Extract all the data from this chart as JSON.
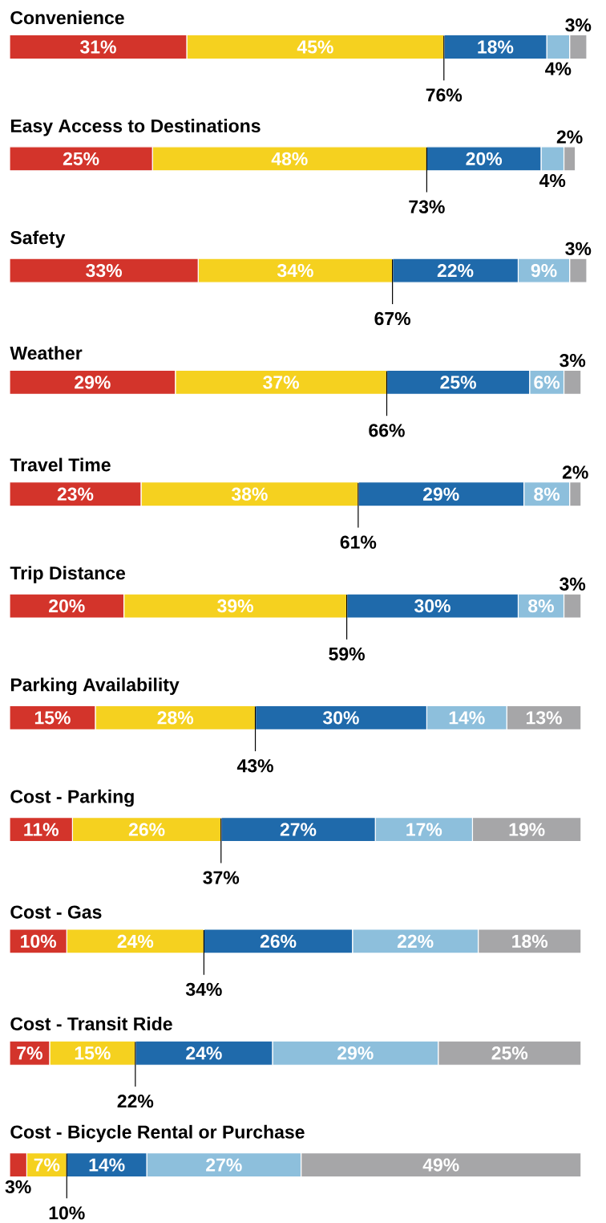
{
  "chart_data": {
    "type": "bar",
    "orientation": "horizontal",
    "stacked": true,
    "categories": [
      "Convenience",
      "Easy Access to Destinations",
      "Safety",
      "Weather",
      "Travel Time",
      "Trip Distance",
      "Parking Availability",
      "Cost - Parking",
      "Cost - Gas",
      "Cost - Transit Ride",
      "Cost - Bicycle Rental or Purchase"
    ],
    "series": [
      {
        "color": "#d3342b",
        "values": [
          31,
          25,
          33,
          29,
          23,
          20,
          15,
          11,
          10,
          7,
          3
        ],
        "value_labels": [
          "31%",
          "25%",
          "33%",
          "29%",
          "23%",
          "20%",
          "15%",
          "11%",
          "10%",
          "7%",
          "3%"
        ]
      },
      {
        "color": "#f5d11f",
        "values": [
          45,
          48,
          34,
          37,
          38,
          39,
          28,
          26,
          24,
          15,
          7
        ],
        "value_labels": [
          "45%",
          "48%",
          "34%",
          "37%",
          "38%",
          "39%",
          "28%",
          "26%",
          "24%",
          "15%",
          "7%"
        ]
      },
      {
        "color": "#1f6aab",
        "values": [
          18,
          20,
          22,
          25,
          29,
          30,
          30,
          27,
          26,
          24,
          14
        ],
        "value_labels": [
          "18%",
          "20%",
          "22%",
          "25%",
          "29%",
          "30%",
          "30%",
          "27%",
          "26%",
          "24%",
          "14%"
        ]
      },
      {
        "color": "#8dbfdc",
        "values": [
          4,
          4,
          9,
          6,
          8,
          8,
          14,
          17,
          22,
          29,
          27
        ],
        "value_labels": [
          "4%",
          "4%",
          "9%",
          "6%",
          "8%",
          "8%",
          "14%",
          "17%",
          "22%",
          "29%",
          "27%"
        ]
      },
      {
        "color": "#a6a6a8",
        "values": [
          3,
          2,
          3,
          3,
          2,
          3,
          13,
          19,
          18,
          25,
          49
        ],
        "value_labels": [
          "3%",
          "2%",
          "3%",
          "3%",
          "2%",
          "3%",
          "13%",
          "19%",
          "18%",
          "25%",
          "49%"
        ]
      }
    ],
    "annotations": [
      "76%",
      "73%",
      "67%",
      "66%",
      "61%",
      "59%",
      "43%",
      "37%",
      "34%",
      "22%",
      "10%"
    ]
  }
}
